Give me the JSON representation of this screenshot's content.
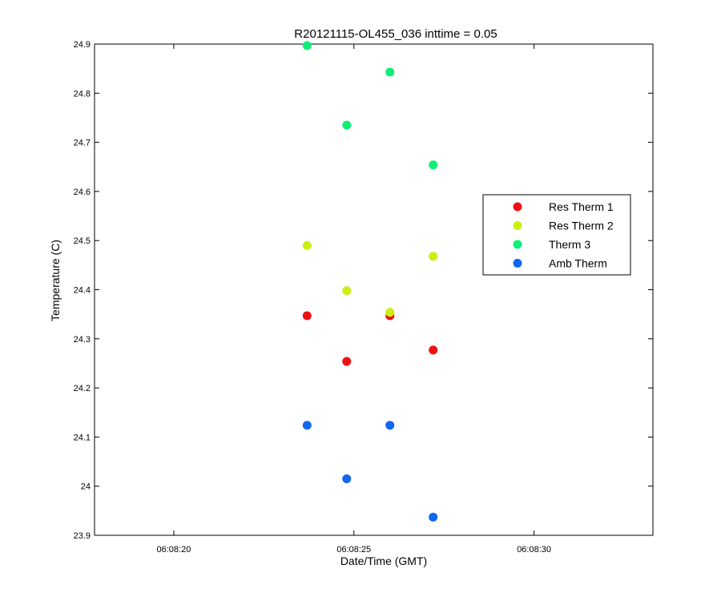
{
  "chart_data": {
    "type": "scatter",
    "title": "R20121115-OL455_036 inttime = 0.05",
    "xlabel": "Date/Time (GMT)",
    "ylabel": "Temperature (C)",
    "xlim": [
      "06:08:17.8",
      "06:08:33.3"
    ],
    "ylim": [
      23.9,
      24.9
    ],
    "xticks": [
      "06:08:20",
      "06:08:25",
      "06:08:30"
    ],
    "yticks": [
      23.9,
      24.0,
      24.1,
      24.2,
      24.3,
      24.4,
      24.5,
      24.6,
      24.7,
      24.8,
      24.9
    ],
    "yticklabels": [
      "23.9",
      "24",
      "24.1",
      "24.2",
      "24.3",
      "24.4",
      "24.5",
      "24.6",
      "24.7",
      "24.8",
      "24.9"
    ],
    "grid": false,
    "legend_position": "right",
    "x": [
      "06:08:23.7",
      "06:08:24.8",
      "06:08:26.0",
      "06:08:27.2"
    ],
    "series": [
      {
        "name": "Res Therm 1",
        "color": "#ee1111",
        "values": [
          24.347,
          24.254,
          24.347,
          24.277
        ]
      },
      {
        "name": "Res Therm 2",
        "color": "#ccee11",
        "values": [
          24.49,
          24.398,
          24.354,
          24.468
        ]
      },
      {
        "name": "Therm 3",
        "color": "#11ee77",
        "values": [
          24.897,
          24.735,
          24.843,
          24.654
        ]
      },
      {
        "name": "Amb Therm",
        "color": "#1166ee",
        "values": [
          24.124,
          24.015,
          24.124,
          23.937
        ]
      }
    ]
  }
}
